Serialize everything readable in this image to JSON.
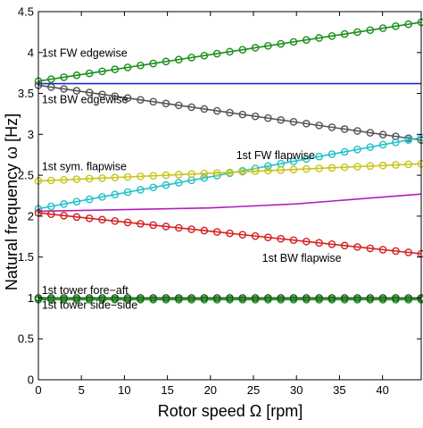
{
  "chart_data": {
    "type": "line",
    "title": "",
    "xlabel": "Rotor speed Ω [rpm]",
    "ylabel": "Natural frequency ω [Hz]",
    "xlim": [
      0,
      44.5
    ],
    "ylim": [
      0,
      4.5
    ],
    "xticks": [
      0,
      5,
      10,
      15,
      20,
      25,
      30,
      35,
      40
    ],
    "yticks": [
      0,
      0.5,
      1,
      1.5,
      2,
      2.5,
      3,
      3.5,
      4,
      4.5
    ],
    "xtick_labels": [
      "0",
      "5",
      "10",
      "15",
      "20",
      "25",
      "30",
      "35",
      "40"
    ],
    "ytick_labels": [
      "0",
      "0.5",
      "1",
      "1.5",
      "2",
      "2.5",
      "3",
      "3.5",
      "4",
      "4.5"
    ],
    "grid": false,
    "legend": "none",
    "series": [
      {
        "key": "fw-edgewise",
        "color": "#1a8f1a",
        "marker": "circle",
        "x": [
          0,
          44.5
        ],
        "y": [
          3.65,
          4.37
        ]
      },
      {
        "key": "bw-edgewise",
        "color": "#555555",
        "marker": "circle",
        "x": [
          0,
          44.5
        ],
        "y": [
          3.6,
          2.93
        ]
      },
      {
        "key": "blue-line",
        "color": "#1f2fc8",
        "marker": "none",
        "x": [
          0,
          44.5
        ],
        "y": [
          3.62,
          3.62
        ]
      },
      {
        "key": "fw-flapwise",
        "color": "#22c0c8",
        "marker": "circle",
        "x": [
          0,
          44.5
        ],
        "y": [
          2.09,
          2.96
        ]
      },
      {
        "key": "sym-flapwise",
        "color": "#c8c41a",
        "marker": "circle",
        "x": [
          0,
          44.5
        ],
        "y": [
          2.43,
          2.64
        ]
      },
      {
        "key": "magenta-line",
        "color": "#b01ec0",
        "marker": "none",
        "x": [
          0,
          10,
          20,
          30,
          44.5
        ],
        "y": [
          2.06,
          2.08,
          2.1,
          2.15,
          2.27
        ]
      },
      {
        "key": "bw-flapwise",
        "color": "#d42020",
        "marker": "circle",
        "x": [
          0,
          44.5
        ],
        "y": [
          2.04,
          1.54
        ]
      },
      {
        "key": "tower-side-side",
        "color": "#1a8f1a",
        "marker": "circle",
        "x": [
          0,
          44.5
        ],
        "y": [
          0.98,
          0.98
        ]
      },
      {
        "key": "tower-fore-aft",
        "color": "#1a5c1a",
        "marker": "circle",
        "x": [
          0,
          44.5
        ],
        "y": [
          1.0,
          1.0
        ]
      }
    ],
    "annotations": [
      {
        "text": "1st FW edgewise",
        "x": 0.4,
        "y": 3.95,
        "anchor": "start"
      },
      {
        "text": "1st BW edgewise",
        "x": 0.4,
        "y": 3.38,
        "anchor": "start"
      },
      {
        "text": "1st FW flapwise",
        "x": 23.0,
        "y": 2.7,
        "anchor": "start"
      },
      {
        "text": "1st sym. flapwise",
        "x": 0.4,
        "y": 2.56,
        "anchor": "start"
      },
      {
        "text": "1st BW flapwise",
        "x": 26.0,
        "y": 1.44,
        "anchor": "start"
      },
      {
        "text": "1st tower fore−aft",
        "x": 0.4,
        "y": 1.05,
        "anchor": "start"
      },
      {
        "text": "1st tower side−side",
        "x": 0.4,
        "y": 0.87,
        "anchor": "start"
      }
    ]
  }
}
